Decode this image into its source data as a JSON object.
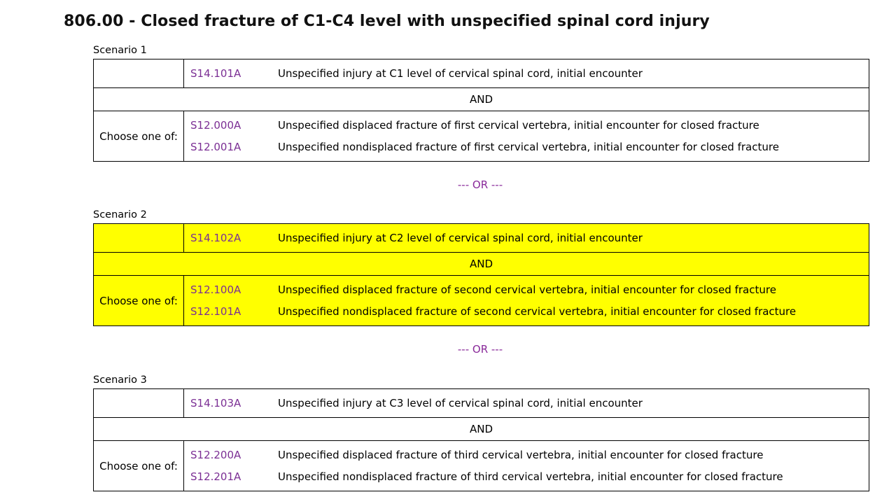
{
  "title": "806.00 - Closed fracture of C1-C4 level with unspecified spinal cord injury",
  "or_label": "--- OR ---",
  "scenarios": [
    {
      "label": "Scenario 1",
      "highlighted": false,
      "primary": {
        "code": "S14.101A",
        "desc": "Unspecified injury at C1 level of cervical spinal cord, initial encounter"
      },
      "and_label": "AND",
      "choose_label": "Choose one of:",
      "choices": [
        {
          "code": "S12.000A",
          "desc": "Unspecified displaced fracture of first cervical vertebra, initial encounter for closed fracture"
        },
        {
          "code": "S12.001A",
          "desc": "Unspecified nondisplaced fracture of first cervical vertebra, initial encounter for closed fracture"
        }
      ]
    },
    {
      "label": "Scenario 2",
      "highlighted": true,
      "highlight_color": "#ffff00",
      "primary": {
        "code": "S14.102A",
        "desc": "Unspecified injury at C2 level of cervical spinal cord, initial encounter"
      },
      "and_label": "AND",
      "choose_label": "Choose one of:",
      "choices": [
        {
          "code": "S12.100A",
          "desc": "Unspecified displaced fracture of second cervical vertebra, initial encounter for closed fracture"
        },
        {
          "code": "S12.101A",
          "desc": "Unspecified nondisplaced fracture of second cervical vertebra, initial encounter for closed fracture"
        }
      ]
    },
    {
      "label": "Scenario 3",
      "highlighted": false,
      "primary": {
        "code": "S14.103A",
        "desc": "Unspecified injury at C3 level of cervical spinal cord, initial encounter"
      },
      "and_label": "AND",
      "choose_label": "Choose one of:",
      "choices": [
        {
          "code": "S12.200A",
          "desc": "Unspecified displaced fracture of third cervical vertebra, initial encounter for closed fracture"
        },
        {
          "code": "S12.201A",
          "desc": "Unspecified nondisplaced fracture of third cervical vertebra, initial encounter for closed fracture"
        }
      ]
    }
  ],
  "colors": {
    "code": "#7b2f94",
    "or_separator": "#8a2a9a",
    "highlight": "#ffff00"
  }
}
